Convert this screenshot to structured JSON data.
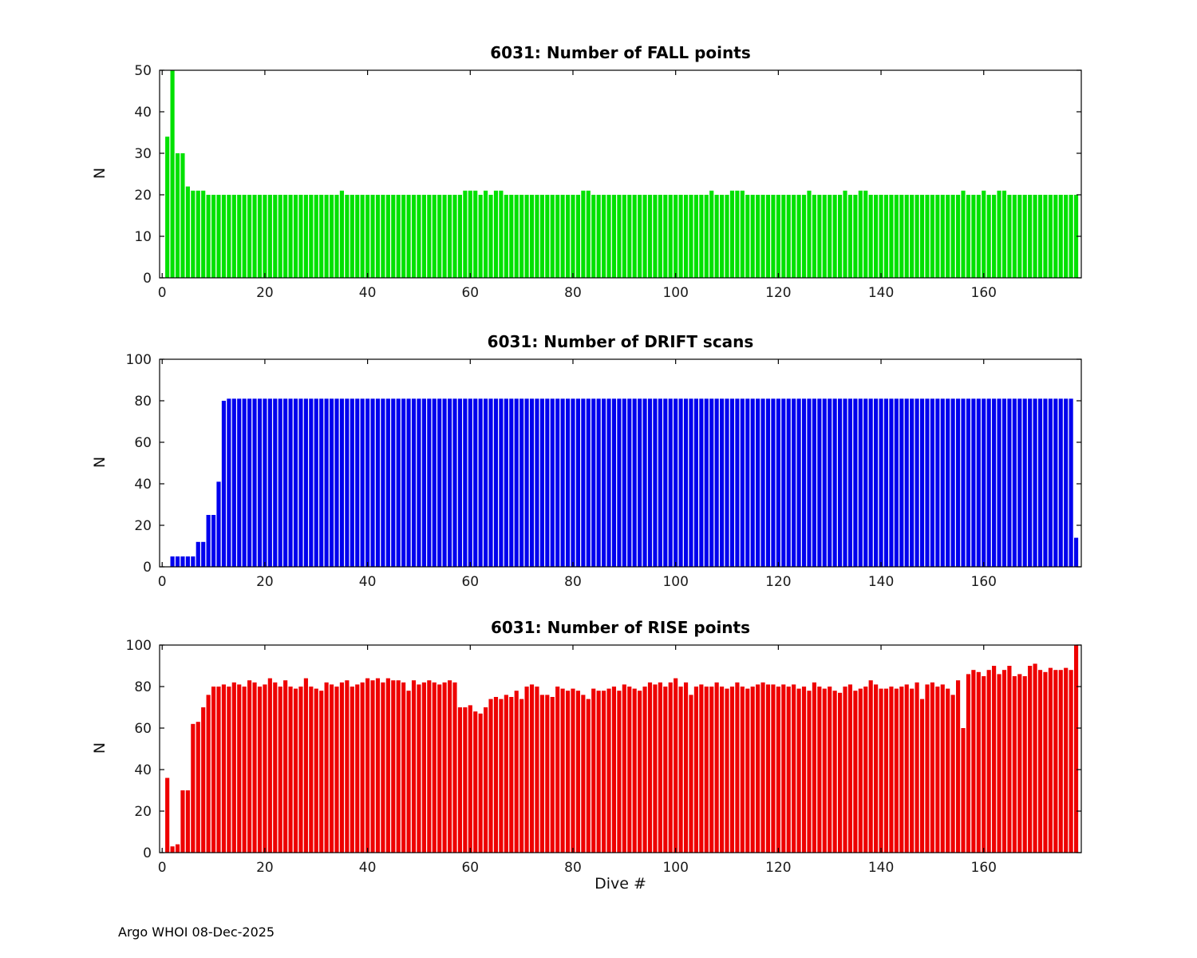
{
  "footer": "Argo WHOI 08-Dec-2025",
  "chart_data": [
    {
      "type": "bar",
      "title": "6031: Number of FALL points",
      "ylabel": "N",
      "xlabel": "",
      "color": "#00e100",
      "ylim": [
        0,
        50
      ],
      "yticks": [
        0,
        10,
        20,
        30,
        40,
        50
      ],
      "xticks": [
        0,
        20,
        40,
        60,
        80,
        100,
        120,
        140,
        160
      ],
      "x_start": 1,
      "values": [
        34,
        51,
        30,
        30,
        22,
        21,
        21,
        21,
        20,
        20,
        20,
        20,
        20,
        20,
        20,
        20,
        20,
        20,
        20,
        20,
        20,
        20,
        20,
        20,
        20,
        20,
        20,
        20,
        20,
        20,
        20,
        20,
        20,
        20,
        21,
        20,
        20,
        20,
        20,
        20,
        20,
        20,
        20,
        20,
        20,
        20,
        20,
        20,
        20,
        20,
        20,
        20,
        20,
        20,
        20,
        20,
        20,
        20,
        21,
        21,
        21,
        20,
        21,
        20,
        21,
        21,
        20,
        20,
        20,
        20,
        20,
        20,
        20,
        20,
        20,
        20,
        20,
        20,
        20,
        20,
        20,
        21,
        21,
        20,
        20,
        20,
        20,
        20,
        20,
        20,
        20,
        20,
        20,
        20,
        20,
        20,
        20,
        20,
        20,
        20,
        20,
        20,
        20,
        20,
        20,
        20,
        21,
        20,
        20,
        20,
        21,
        21,
        21,
        20,
        20,
        20,
        20,
        20,
        20,
        20,
        20,
        20,
        20,
        20,
        20,
        21,
        20,
        20,
        20,
        20,
        20,
        20,
        21,
        20,
        20,
        21,
        21,
        20,
        20,
        20,
        20,
        20,
        20,
        20,
        20,
        20,
        20,
        20,
        20,
        20,
        20,
        20,
        20,
        20,
        20,
        21,
        20,
        20,
        20,
        21,
        20,
        20,
        21,
        21,
        20,
        20,
        20,
        20,
        20,
        20,
        20,
        20,
        20,
        20,
        20,
        20,
        20,
        20
      ]
    },
    {
      "type": "bar",
      "title": "6031: Number of DRIFT scans",
      "ylabel": "N",
      "xlabel": "",
      "color": "#0000ee",
      "ylim": [
        0,
        100
      ],
      "yticks": [
        0,
        20,
        40,
        60,
        80,
        100
      ],
      "xticks": [
        0,
        20,
        40,
        60,
        80,
        100,
        120,
        140,
        160
      ],
      "x_start": 1,
      "values": [
        0,
        5,
        5,
        5,
        5,
        5,
        12,
        12,
        25,
        25,
        41,
        80,
        81,
        81,
        81,
        81,
        81,
        81,
        81,
        81,
        81,
        81,
        81,
        81,
        81,
        81,
        81,
        81,
        81,
        81,
        81,
        81,
        81,
        81,
        81,
        81,
        81,
        81,
        81,
        81,
        81,
        81,
        81,
        81,
        81,
        81,
        81,
        81,
        81,
        81,
        81,
        81,
        81,
        81,
        81,
        81,
        81,
        81,
        81,
        81,
        81,
        81,
        81,
        81,
        81,
        81,
        81,
        81,
        81,
        81,
        81,
        81,
        81,
        81,
        81,
        81,
        81,
        81,
        81,
        81,
        81,
        81,
        81,
        81,
        81,
        81,
        81,
        81,
        81,
        81,
        81,
        81,
        81,
        81,
        81,
        81,
        81,
        81,
        81,
        81,
        81,
        81,
        81,
        81,
        81,
        81,
        81,
        81,
        81,
        81,
        81,
        81,
        81,
        81,
        81,
        81,
        81,
        81,
        81,
        81,
        81,
        81,
        81,
        81,
        81,
        81,
        81,
        81,
        81,
        81,
        81,
        81,
        81,
        81,
        81,
        81,
        81,
        81,
        81,
        81,
        81,
        81,
        81,
        81,
        81,
        81,
        81,
        81,
        81,
        81,
        81,
        81,
        81,
        81,
        81,
        81,
        81,
        81,
        81,
        81,
        81,
        81,
        81,
        81,
        81,
        81,
        81,
        81,
        81,
        81,
        81,
        81,
        81,
        81,
        81,
        81,
        81,
        14
      ]
    },
    {
      "type": "bar",
      "title": "6031: Number of RISE points",
      "ylabel": "N",
      "xlabel": "Dive #",
      "color": "#ee0000",
      "ylim": [
        0,
        100
      ],
      "yticks": [
        0,
        20,
        40,
        60,
        80,
        100
      ],
      "xticks": [
        0,
        20,
        40,
        60,
        80,
        100,
        120,
        140,
        160
      ],
      "x_start": 1,
      "values": [
        36,
        3,
        4,
        30,
        30,
        62,
        63,
        70,
        76,
        80,
        80,
        81,
        80,
        82,
        81,
        80,
        83,
        82,
        80,
        81,
        84,
        82,
        80,
        83,
        80,
        79,
        80,
        84,
        80,
        79,
        78,
        82,
        81,
        80,
        82,
        83,
        80,
        81,
        82,
        84,
        83,
        84,
        82,
        84,
        83,
        83,
        82,
        78,
        83,
        81,
        82,
        83,
        82,
        81,
        82,
        83,
        82,
        70,
        70,
        71,
        68,
        67,
        70,
        74,
        75,
        74,
        76,
        75,
        78,
        74,
        80,
        81,
        80,
        76,
        76,
        75,
        80,
        79,
        78,
        79,
        78,
        76,
        74,
        79,
        78,
        78,
        79,
        80,
        78,
        81,
        80,
        79,
        78,
        80,
        82,
        81,
        82,
        80,
        82,
        84,
        80,
        82,
        76,
        80,
        81,
        80,
        80,
        82,
        80,
        79,
        80,
        82,
        80,
        79,
        80,
        81,
        82,
        81,
        81,
        80,
        81,
        80,
        81,
        79,
        80,
        78,
        82,
        80,
        79,
        80,
        78,
        77,
        80,
        81,
        78,
        79,
        80,
        83,
        81,
        79,
        79,
        80,
        79,
        80,
        81,
        79,
        82,
        74,
        81,
        82,
        80,
        81,
        79,
        76,
        83,
        60,
        86,
        88,
        87,
        85,
        88,
        90,
        86,
        88,
        90,
        85,
        86,
        85,
        90,
        91,
        88,
        87,
        89,
        88,
        88,
        89,
        88,
        100
      ]
    }
  ]
}
